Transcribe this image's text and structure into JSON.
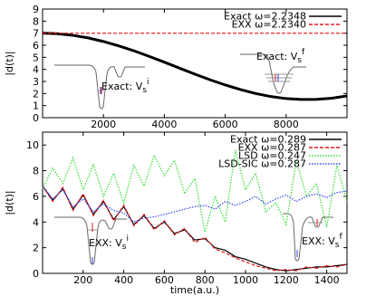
{
  "chart_data": [
    {
      "type": "line",
      "ylabel": "|d(t)|",
      "x": [
        0,
        500,
        1000,
        1500,
        2000,
        2500,
        3000,
        3500,
        4000,
        4500,
        5000,
        5500,
        6000,
        6500,
        7000,
        7500,
        8000,
        8500,
        9000,
        9500,
        10000
      ],
      "series": [
        {
          "name": "Exact ω=2.2348",
          "color": "#000000",
          "style": "solid",
          "values": [
            7.0,
            6.96,
            6.82,
            6.61,
            6.31,
            5.95,
            5.54,
            5.08,
            4.6,
            4.1,
            3.61,
            3.14,
            2.71,
            2.33,
            2.0,
            1.75,
            1.58,
            1.51,
            1.52,
            1.61,
            1.8
          ]
        },
        {
          "name": "EXX ω=2.2340",
          "color": "#e41a1c",
          "style": "dashed",
          "values": [
            7.0,
            7.0,
            7.0,
            7.0,
            7.0,
            7.0,
            7.0,
            7.0,
            7.0,
            7.0,
            7.0,
            7.0,
            7.0,
            7.0,
            7.0,
            7.0,
            7.0,
            7.0,
            7.0,
            7.0,
            7.0
          ]
        }
      ],
      "xlim": [
        0,
        10000
      ],
      "ylim": [
        0,
        9
      ],
      "xticks": [
        2000,
        4000,
        6000,
        8000
      ],
      "yticks": [
        0,
        1,
        2,
        3,
        4,
        5,
        6,
        7,
        8,
        9
      ],
      "legend": "upper right",
      "annotations": [
        {
          "text": "Exact: V",
          "sub": "s",
          "sup": "i"
        },
        {
          "text": "Exact: V",
          "sub": "s",
          "sup": "f"
        }
      ]
    },
    {
      "type": "line",
      "ylabel": "|d(t)|",
      "xlabel": "time(a.u.)",
      "x": [
        0,
        50,
        100,
        150,
        200,
        250,
        300,
        350,
        400,
        450,
        500,
        550,
        600,
        650,
        700,
        750,
        800,
        850,
        900,
        950,
        1000,
        1050,
        1100,
        1150,
        1200,
        1250,
        1300,
        1350,
        1400,
        1450,
        1500
      ],
      "series": [
        {
          "name": "Exact ω=0.289",
          "color": "#000000",
          "style": "solid",
          "values": [
            6.8,
            5.7,
            6.6,
            5.0,
            6.1,
            4.6,
            5.6,
            4.2,
            5.2,
            3.8,
            4.5,
            3.5,
            4.0,
            3.1,
            3.4,
            2.6,
            2.7,
            2.0,
            1.8,
            1.3,
            1.1,
            0.8,
            0.5,
            0.3,
            0.2,
            0.3,
            0.4,
            0.5,
            0.5,
            0.6,
            0.7
          ]
        },
        {
          "name": "EXX ω=0.287",
          "color": "#e41a1c",
          "style": "dashed",
          "values": [
            6.8,
            5.6,
            6.7,
            4.9,
            6.2,
            4.5,
            5.7,
            4.1,
            5.3,
            3.7,
            4.6,
            3.4,
            4.1,
            3.0,
            3.5,
            2.4,
            2.8,
            1.9,
            1.6,
            1.2,
            0.9,
            0.6,
            0.4,
            0.2,
            0.3,
            0.2,
            0.5,
            0.4,
            0.6,
            0.5,
            0.7
          ]
        },
        {
          "name": "LSD ω=0.247",
          "color": "#33dd33",
          "style": "dotted",
          "values": [
            6.6,
            8.2,
            7.0,
            9.0,
            6.5,
            8.5,
            6.0,
            7.8,
            5.5,
            8.4,
            6.8,
            9.2,
            7.6,
            8.8,
            6.2,
            7.4,
            3.2,
            6.0,
            4.0,
            9.6,
            6.5,
            7.8,
            4.8,
            5.5,
            3.8,
            8.8,
            6.0,
            7.0,
            3.6,
            8.4,
            5.6
          ]
        },
        {
          "name": "LSD-SIC ω=0.287",
          "color": "#3344ee",
          "style": "dotted",
          "values": [
            6.8,
            5.8,
            6.5,
            5.2,
            5.8,
            4.8,
            5.4,
            4.9,
            4.7,
            4.0,
            4.3,
            4.4,
            4.6,
            4.8,
            5.0,
            5.2,
            5.3,
            5.0,
            5.6,
            5.3,
            5.6,
            6.0,
            5.4,
            5.8,
            6.1,
            5.6,
            6.0,
            6.2,
            5.9,
            6.3,
            6.4
          ]
        }
      ],
      "xlim": [
        0,
        1500
      ],
      "ylim": [
        0,
        11
      ],
      "xticks": [
        200,
        400,
        600,
        800,
        1000,
        1200,
        1400
      ],
      "yticks": [
        0,
        2,
        4,
        6,
        8,
        10
      ],
      "legend": "upper right",
      "annotations": [
        {
          "text": "EXX: V",
          "sub": "s",
          "sup": "i"
        },
        {
          "text": "EXX: V",
          "sub": "s",
          "sup": "f"
        }
      ]
    }
  ]
}
